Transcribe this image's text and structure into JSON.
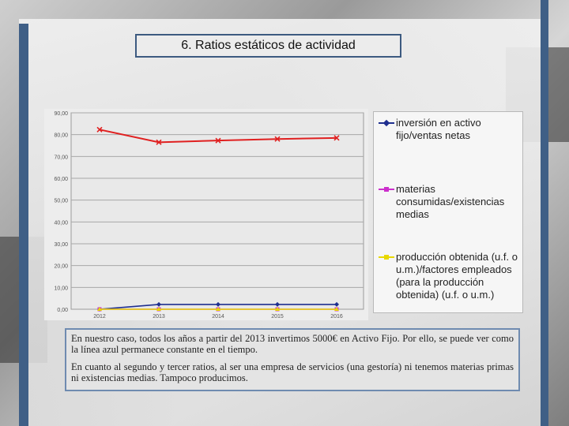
{
  "title": "6. Ratios estáticos de actividad",
  "paragraphs": [
    "En nuestro caso, todos los años a partir del 2013 invertimos 5000€ en Activo Fijo. Por ello, se puede ver como la línea azul permanece constante en el tiempo.",
    "En cuanto al segundo y tercer ratios, al ser una empresa de servicios (una gestoría) ni tenemos materias primas ni existencias medias. Tampoco producimos."
  ],
  "chart_data": {
    "type": "line",
    "categories": [
      "2012",
      "2013",
      "2014",
      "2015",
      "2016"
    ],
    "ylim": [
      0,
      90
    ],
    "yticks": [
      "0,00",
      "10,00",
      "20,00",
      "30,00",
      "40,00",
      "50,00",
      "60,00",
      "70,00",
      "80,00",
      "90,00"
    ],
    "grid": true,
    "legend_position": "right",
    "series": [
      {
        "name": "inversión en activo fijo/ventas netas",
        "color": "#1f2f8f",
        "marker": "diamond",
        "values": [
          0,
          2.2,
          2.2,
          2.2,
          2.2
        ]
      },
      {
        "name": "materias consumidas/existencias medias",
        "color": "#cc2fcc",
        "marker": "square",
        "values": [
          0,
          0,
          0,
          0,
          0
        ]
      },
      {
        "name": "producción obtenida (u.f. o u.m.)/factores empleados (para la producción obtenida) (u.f. o u.m.)",
        "color": "#e8d800",
        "marker": "triangle",
        "values": [
          0,
          0,
          0,
          0,
          0
        ]
      },
      {
        "name": "",
        "color": "#e02020",
        "marker": "x",
        "values": [
          82.3,
          76.5,
          77.3,
          78.0,
          78.5
        ]
      }
    ]
  }
}
